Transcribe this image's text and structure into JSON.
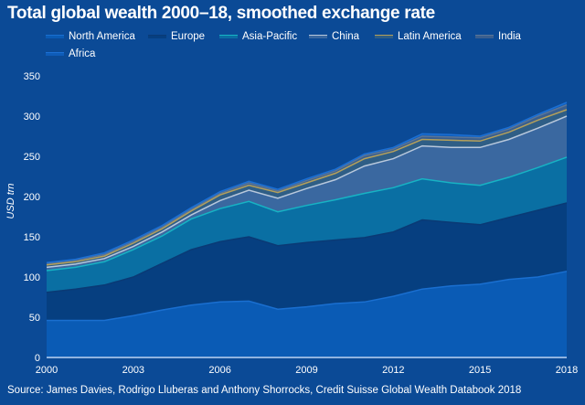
{
  "chart_data": {
    "type": "area",
    "stacked": true,
    "title": "Total global wealth 2000–18, smoothed exchange rate",
    "xlabel": "",
    "ylabel": "USD trn",
    "x": [
      2000,
      2001,
      2002,
      2003,
      2004,
      2005,
      2006,
      2007,
      2008,
      2009,
      2010,
      2011,
      2012,
      2013,
      2014,
      2015,
      2016,
      2017,
      2018
    ],
    "x_ticks": [
      2000,
      2003,
      2006,
      2009,
      2012,
      2015,
      2018
    ],
    "x_tick_labels": [
      "2000",
      "2003",
      "2006",
      "2009",
      "2012",
      "2015",
      "2018"
    ],
    "xlim": [
      2000,
      2018
    ],
    "ylim": [
      0,
      350
    ],
    "y_ticks": [
      0,
      50,
      100,
      150,
      200,
      250,
      300,
      350
    ],
    "y_tick_labels": [
      "0",
      "50",
      "100",
      "150",
      "200",
      "250",
      "300",
      "350"
    ],
    "grid": false,
    "legend_position": "top",
    "series": [
      {
        "name": "North America",
        "color": "#0a5bb5",
        "line_color": "#1a6fd0",
        "values": [
          46,
          46,
          46,
          52,
          59,
          65,
          69,
          70,
          60,
          63,
          67,
          69,
          76,
          85,
          89,
          91,
          97,
          100,
          107
        ]
      },
      {
        "name": "Europe",
        "color": "#063f80",
        "line_color": "#0a3a75",
        "values": [
          35,
          39,
          44,
          48,
          58,
          69,
          75,
          80,
          79,
          80,
          79,
          80,
          80,
          86,
          79,
          74,
          77,
          83,
          85
        ]
      },
      {
        "name": "Asia-Pacific",
        "color": "#0a6fa3",
        "line_color": "#17b3c4",
        "values": [
          27,
          27,
          29,
          34,
          34,
          38,
          41,
          44,
          42,
          46,
          50,
          55,
          55,
          51,
          49,
          49,
          50,
          53,
          57
        ]
      },
      {
        "name": "China",
        "color": "#3a68a0",
        "line_color": "#b8c8dc",
        "values": [
          4,
          4,
          4,
          4,
          5,
          5,
          10,
          14,
          17,
          21,
          25,
          34,
          36,
          41,
          44,
          47,
          47,
          49,
          51
        ]
      },
      {
        "name": "Latin America",
        "color": "#2f5e86",
        "line_color": "#b4a05a",
        "values": [
          3,
          3,
          3,
          4,
          4,
          5,
          7,
          6,
          7,
          7,
          8,
          9,
          9,
          8,
          9,
          8,
          9,
          10,
          8
        ]
      },
      {
        "name": "India",
        "color": "#3a5f8f",
        "line_color": "#5a7598",
        "values": [
          2,
          2,
          2,
          2,
          2,
          2,
          2,
          3,
          2,
          3,
          3,
          4,
          3,
          4,
          4,
          4,
          4,
          5,
          6
        ]
      },
      {
        "name": "Africa",
        "color": "#0e5cb8",
        "line_color": "#1b6fd4",
        "values": [
          1,
          1,
          2,
          2,
          2,
          2,
          2,
          2,
          2,
          2,
          2,
          2,
          2,
          3,
          3,
          2,
          2,
          2,
          3
        ]
      }
    ],
    "source": "Source: James Davies, Rodrigo Lluberas and Anthony Shorrocks, Credit Suisse Global Wealth Databook 2018"
  },
  "axis_color": "#8fb3e0",
  "background_color": "#0b4a96"
}
